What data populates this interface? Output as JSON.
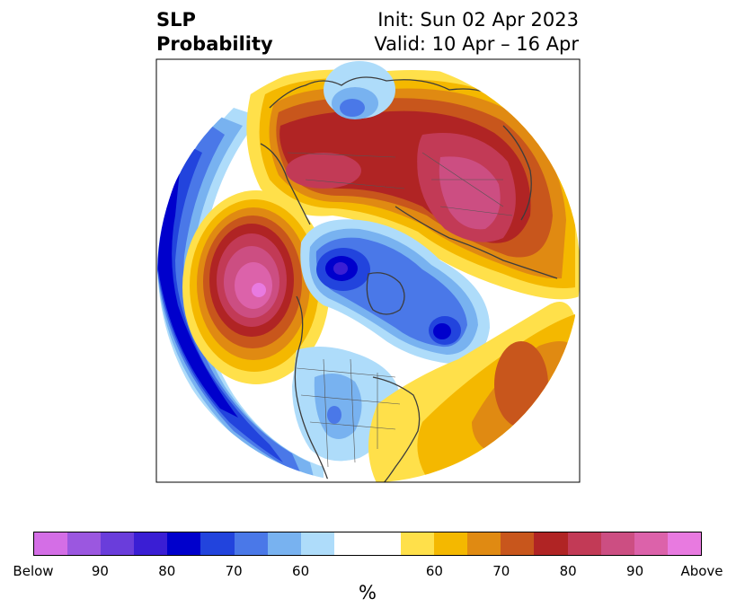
{
  "header": {
    "title_line1": "SLP",
    "title_line2": "Probability",
    "init_line": "Init: Sun 02 Apr 2023",
    "valid_line": "Valid: 10 Apr – 16 Apr"
  },
  "colorbar": {
    "colors": [
      "#d46ee6",
      "#9b57e0",
      "#6a3ddb",
      "#3a1ed4",
      "#0000cc",
      "#2244dd",
      "#4a78e8",
      "#78b2f0",
      "#aedcfa",
      "#ffffff",
      "#ffe04a",
      "#f4b800",
      "#e08a12",
      "#c8561c",
      "#b02424",
      "#c23a56",
      "#cc4e82",
      "#dc62aa",
      "#e87ae0"
    ],
    "wide_index": 9,
    "tick_labels": [
      "Below",
      "90",
      "80",
      "70",
      "60",
      "60",
      "70",
      "80",
      "90",
      "Above"
    ],
    "unit": "%"
  },
  "map": {
    "projection": "north-polar-stereographic",
    "below_color_light": "#aedcfa",
    "above_color_core": "#e87ae0"
  }
}
